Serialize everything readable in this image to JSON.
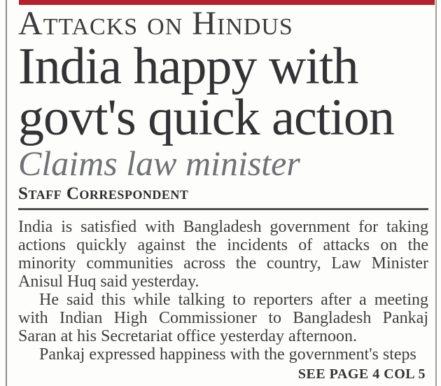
{
  "page": {
    "accent_red": "#b5202a",
    "edge_gray": "#8d8d8d"
  },
  "masthead": {
    "kicker": "Attacks on Hindus"
  },
  "article": {
    "headline_lines": [
      "India happy with",
      "govt's quick action"
    ],
    "subhead": "Claims law minister",
    "byline": "Staff Correspondent",
    "paragraphs": [
      {
        "indent": false,
        "lines": [
          "India is satisfied with Bangladesh government for taking",
          "actions quickly against the incidents of attacks on the",
          "minority communities across the country, Law Minister",
          "Anisul Huq said yesterday."
        ]
      },
      {
        "indent": true,
        "lines": [
          "He said this while talking to reporters after a meeting",
          "with Indian High Commissioner to Bangladesh Pankaj",
          "Saran at his Secretariat office yesterday afternoon."
        ]
      },
      {
        "indent": true,
        "lines": [
          "Pankaj expressed happiness with the government's steps"
        ]
      }
    ],
    "continuation": "SEE PAGE 4 COL 5"
  }
}
